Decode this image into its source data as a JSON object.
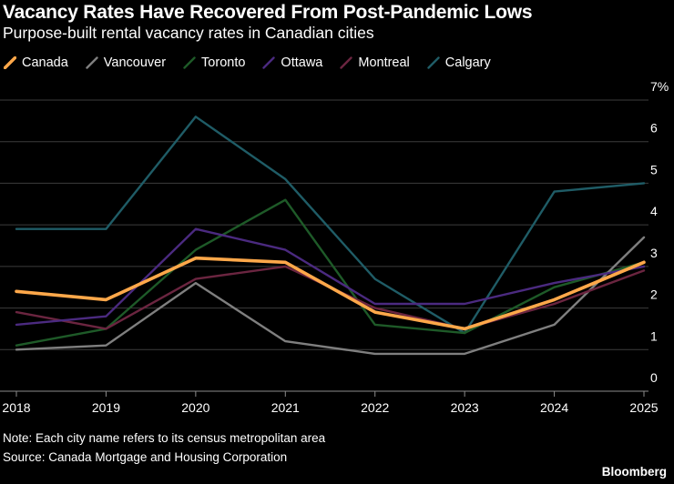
{
  "header": {
    "title": "Vacancy Rates Have Recovered From Post-Pandemic Lows",
    "subtitle": "Purpose-built rental vacancy rates in Canadian cities"
  },
  "footer": {
    "note": "Note: Each city name refers to its census metropolitan area",
    "source": "Source: Canada Mortgage and Housing Corporation",
    "brand": "Bloomberg"
  },
  "chart_data": {
    "type": "line",
    "title": "Vacancy Rates Have Recovered From Post-Pandemic Lows",
    "subtitle": "Purpose-built rental vacancy rates in Canadian cities",
    "x": [
      "2018",
      "2019",
      "2020",
      "2021",
      "2022",
      "2023",
      "2024",
      "2025"
    ],
    "ylim": [
      0,
      7
    ],
    "yticks": [
      "0",
      "1",
      "2",
      "3",
      "4",
      "5",
      "6",
      "7%"
    ],
    "y_axis_side": "right",
    "grid": true,
    "legend_position": "top-left",
    "series": [
      {
        "name": "Canada",
        "color": "#ffa84a",
        "values": [
          2.4,
          2.2,
          3.2,
          3.1,
          1.9,
          1.5,
          2.2,
          3.1
        ]
      },
      {
        "name": "Vancouver",
        "color": "#7f7f7f",
        "values": [
          1.0,
          1.1,
          2.6,
          1.2,
          0.9,
          0.9,
          1.6,
          3.7
        ]
      },
      {
        "name": "Toronto",
        "color": "#1e5a28",
        "values": [
          1.1,
          1.5,
          3.4,
          4.6,
          1.6,
          1.4,
          2.5,
          3.1
        ]
      },
      {
        "name": "Ottawa",
        "color": "#4b2a80",
        "values": [
          1.6,
          1.8,
          3.9,
          3.4,
          2.1,
          2.1,
          2.6,
          3.0
        ]
      },
      {
        "name": "Montreal",
        "color": "#6b2540",
        "values": [
          1.9,
          1.5,
          2.7,
          3.0,
          2.0,
          1.5,
          2.1,
          2.9
        ]
      },
      {
        "name": "Calgary",
        "color": "#1f5c66",
        "values": [
          3.9,
          3.9,
          6.6,
          5.1,
          2.7,
          1.4,
          4.8,
          5.0
        ]
      }
    ],
    "draw_order": [
      "Calgary",
      "Toronto",
      "Vancouver",
      "Montreal",
      "Ottawa",
      "Canada"
    ]
  }
}
